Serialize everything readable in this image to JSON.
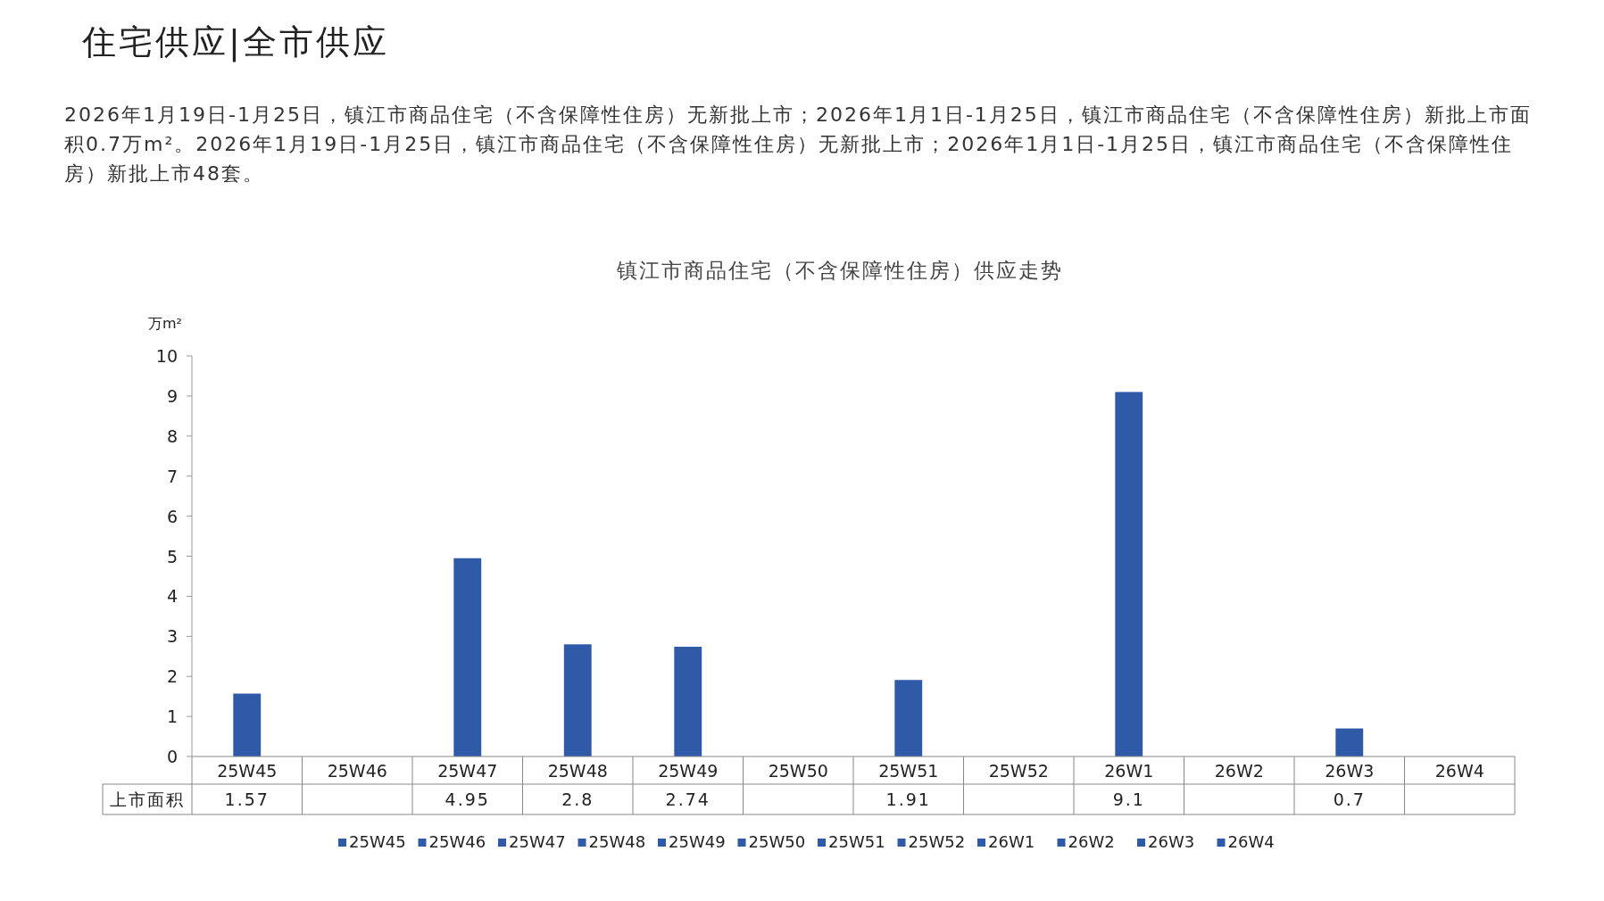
{
  "chart_data": {
    "type": "bar",
    "title": "镇江市商品住宅（不含保障性住房）供应走势",
    "ylabel": "万m²",
    "annotations": [
      "住宅供应|全市供应",
      "2026年1月19日-1月25日，镇江市商品住宅（不含保障性住房）无新批上市；2026年1月1日-1月25日，镇江市商品住宅（不含保障性住房）新批上市面积0.7万m²。2026年1月19日-1月25日，镇江市商品住宅（不含保障性住房）无新批上市；2026年1月1日-1月25日，镇江市商品住宅（不含保障性住房）新批上市48套。"
    ],
    "categories": [
      "25W45",
      "25W46",
      "25W47",
      "25W48",
      "25W49",
      "25W50",
      "25W51",
      "25W52",
      "26W1",
      "26W2",
      "26W3",
      "26W4"
    ],
    "series": [
      {
        "name": "上市面积",
        "color": "#2f5aa8",
        "values": [
          1.57,
          null,
          4.95,
          2.8,
          2.74,
          null,
          1.91,
          null,
          9.1,
          null,
          0.7,
          null
        ]
      }
    ],
    "ylim": [
      0,
      10
    ],
    "yticks": [
      0,
      1,
      2,
      3,
      4,
      5,
      6,
      7,
      8,
      9,
      10
    ],
    "data_labels": true,
    "legend": "bottom",
    "grid": false
  }
}
